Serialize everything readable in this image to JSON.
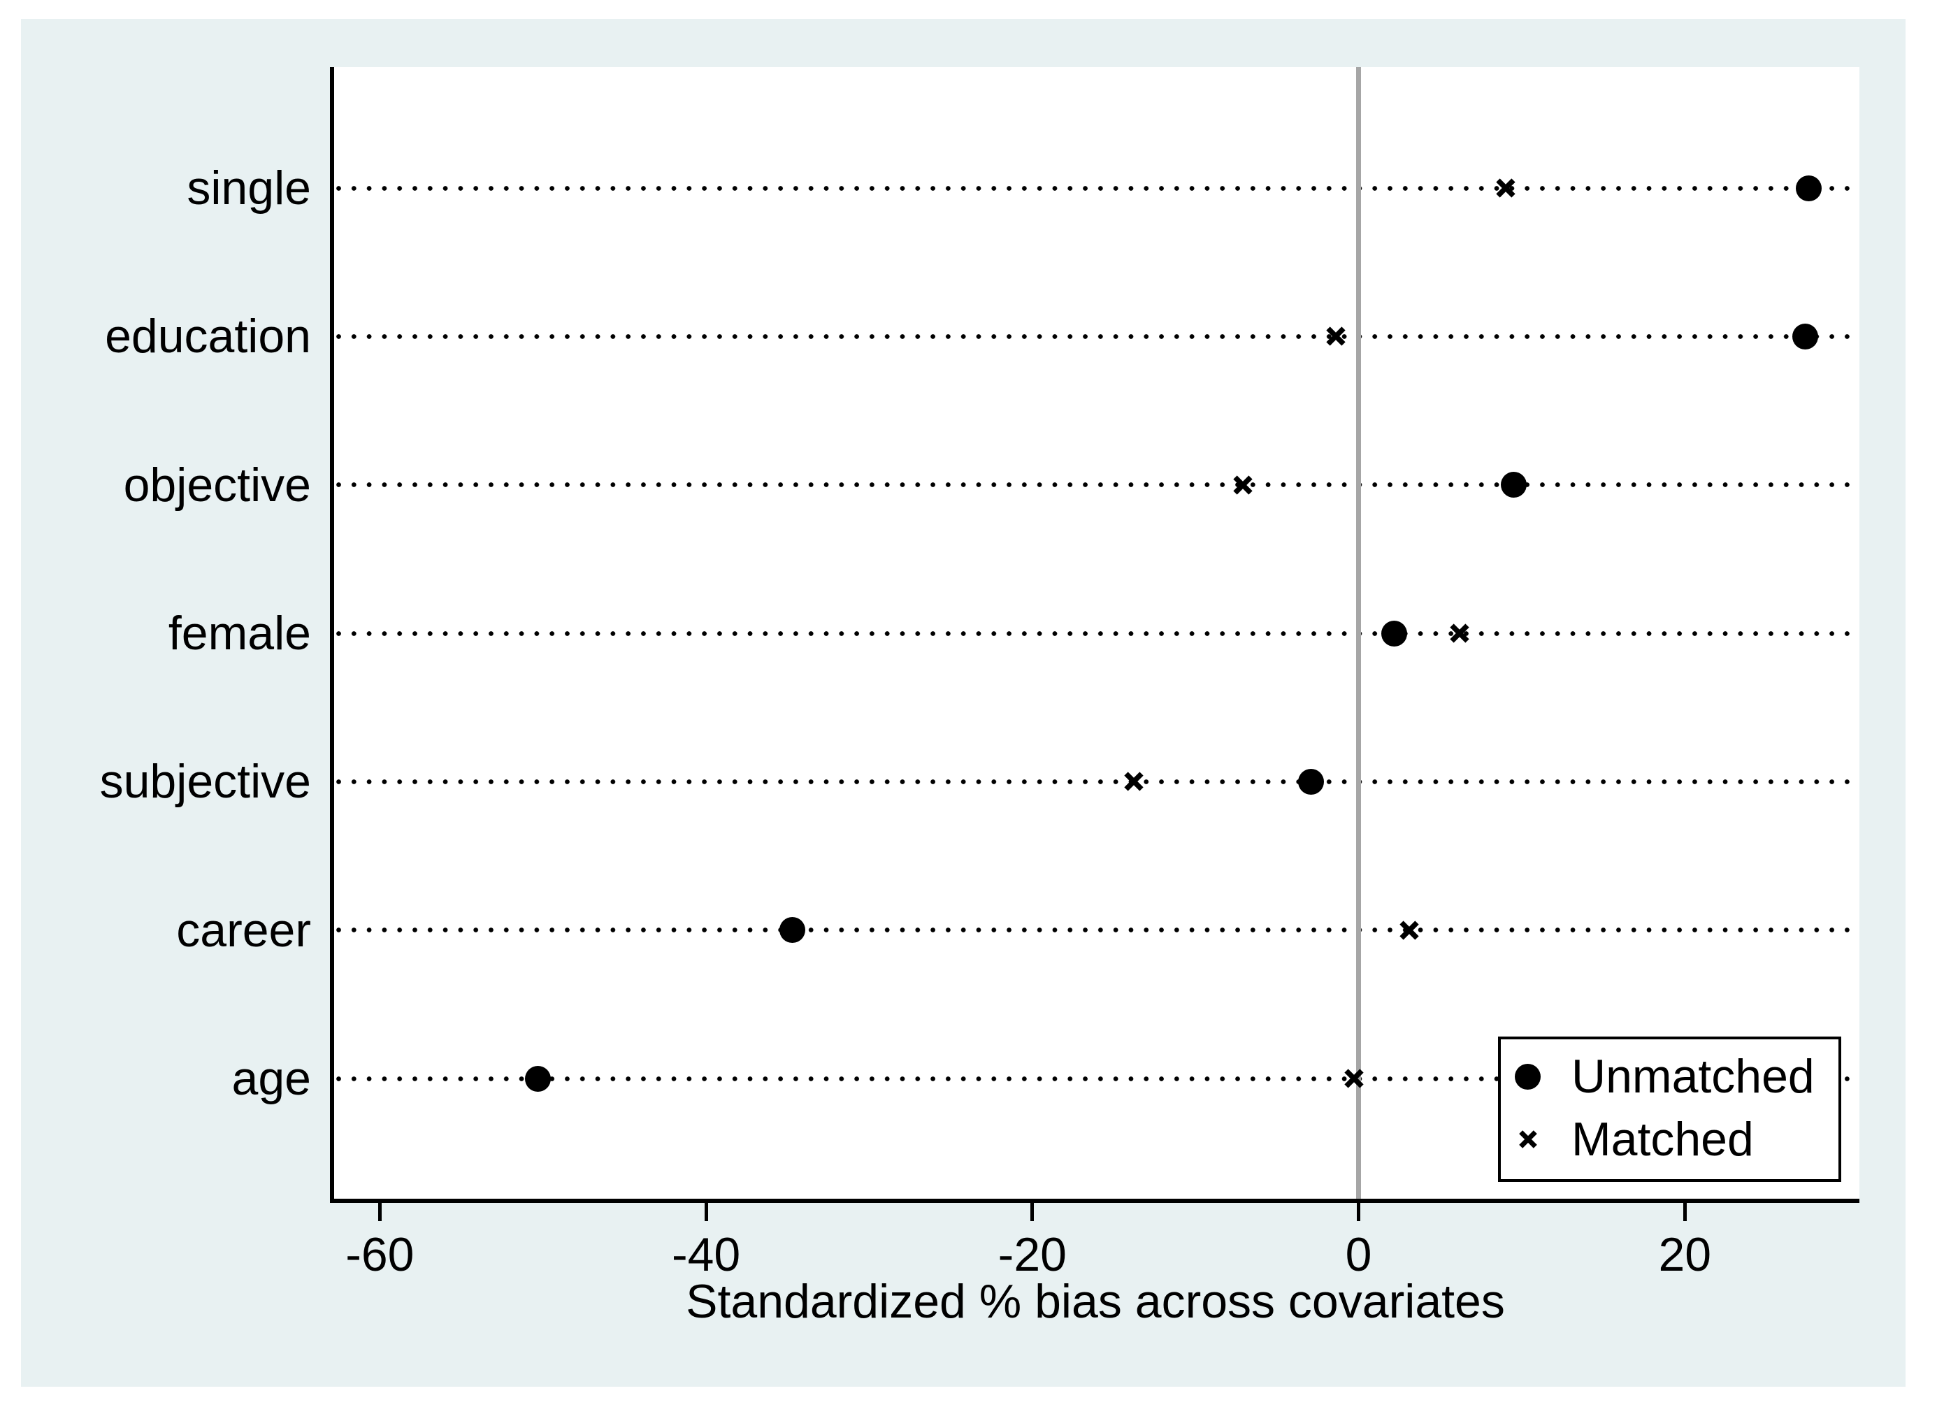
{
  "chart_data": {
    "type": "scatter",
    "subtype": "horizontal-dot-plot",
    "title": "",
    "xlabel": "Standardized % bias across covariates",
    "categories": [
      "single",
      "education",
      "objective",
      "female",
      "subjective",
      "career",
      "age"
    ],
    "series": [
      {
        "name": "Unmatched",
        "marker": "circle",
        "values": [
          27.6,
          27.4,
          9.5,
          2.2,
          -2.9,
          -34.7,
          -50.3
        ]
      },
      {
        "name": "Matched",
        "marker": "x",
        "values": [
          9.0,
          -1.4,
          -7.1,
          6.2,
          -13.8,
          3.1,
          -0.3
        ]
      }
    ],
    "x_ticks": [
      -60,
      -40,
      -20,
      0,
      20
    ],
    "x_tick_labels": [
      "-60",
      "-40",
      "-20",
      "0",
      "20"
    ],
    "xlim": [
      -62.8,
      30.7
    ],
    "zero_reference_line": {
      "x": 0,
      "color": "#a6a6a6"
    },
    "grid": "dotted horizontal line per category",
    "legend": {
      "position": "bottom-right",
      "entries": [
        {
          "marker": "circle",
          "label": "Unmatched"
        },
        {
          "marker": "x",
          "label": "Matched"
        }
      ]
    }
  },
  "colors": {
    "page_background": "#ffffff",
    "graph_background": "#e8f1f2",
    "plot_area_background": "#ffffff",
    "axis_color": "#000000",
    "marker_color": "#000000",
    "zero_line_color": "#a6a6a6",
    "text_color": "#000000"
  }
}
